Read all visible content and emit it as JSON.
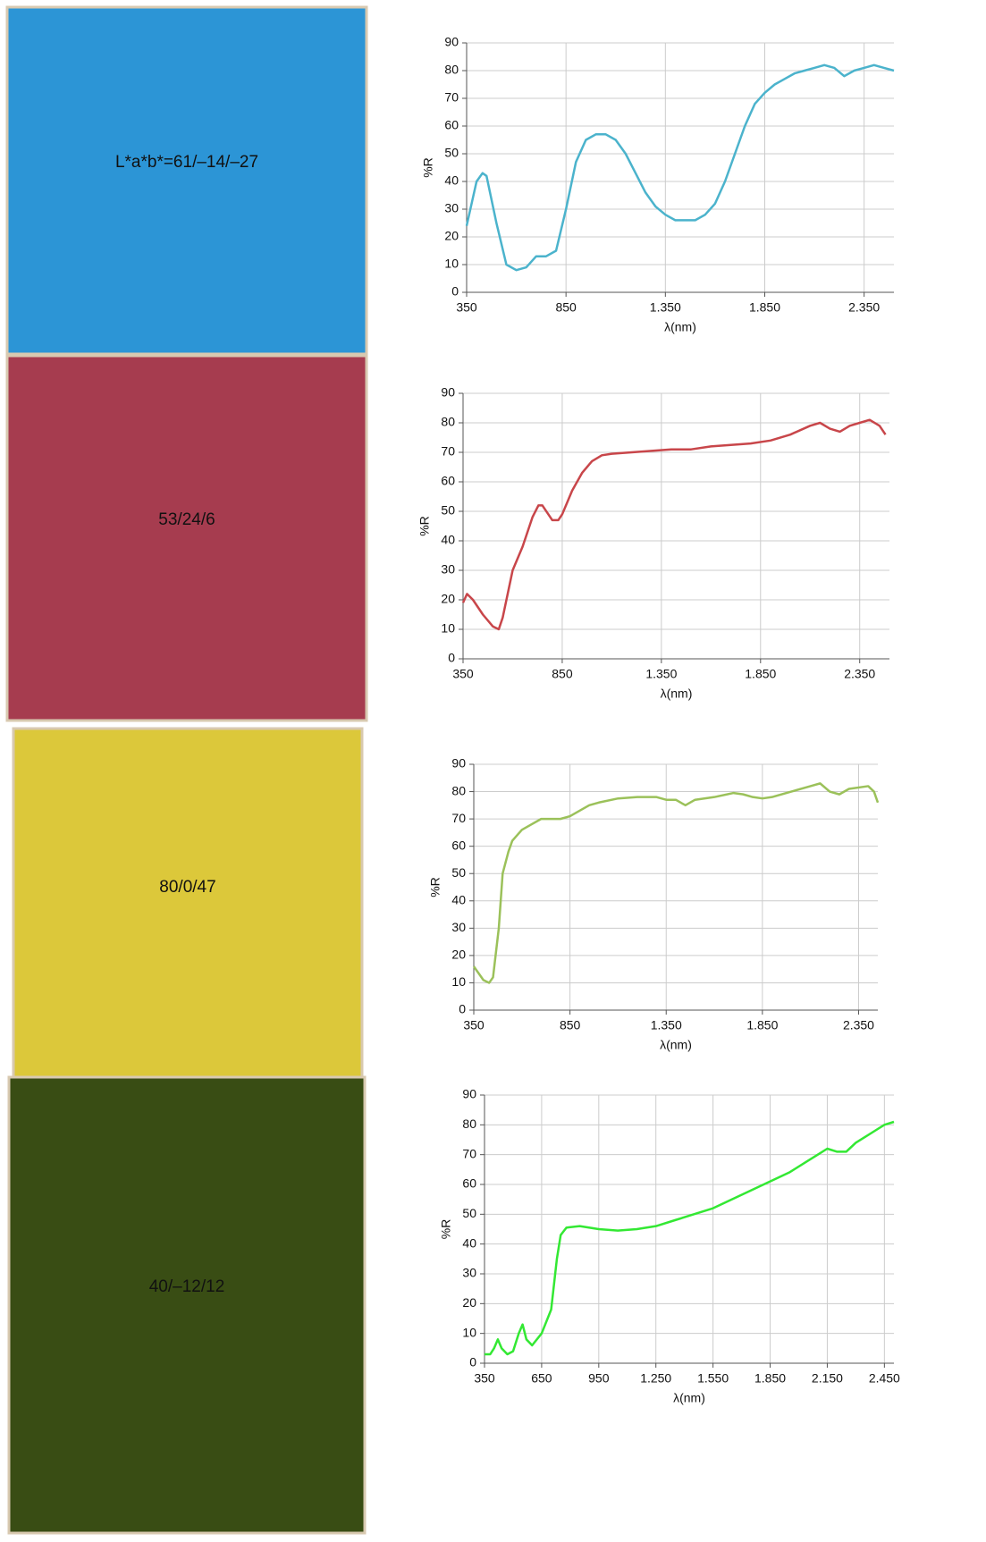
{
  "tiles": [
    {
      "label": "L*a*b*=61/–14/–27",
      "color": "#2c95d6"
    },
    {
      "label": "53/24/6",
      "color": "#a63c4f"
    },
    {
      "label": "80/0/47",
      "color": "#dcc83a"
    },
    {
      "label": "40/–12/12",
      "color": "#394d14"
    }
  ],
  "chart_data": [
    {
      "type": "line",
      "ylabel": "%R",
      "xlabel": "λ(nm)",
      "color": "#4bb3cc",
      "grid": true,
      "xlim": [
        350,
        2500
      ],
      "ylim": [
        0,
        90
      ],
      "xticks": [
        350,
        850,
        {
          "value": 1350,
          "label": "1.350"
        },
        {
          "value": 1850,
          "label": "1.850"
        },
        {
          "value": 2350,
          "label": "2.350"
        }
      ],
      "yticks": [
        0,
        10,
        20,
        30,
        40,
        50,
        60,
        70,
        80,
        90
      ],
      "x": [
        350,
        400,
        430,
        450,
        500,
        550,
        600,
        650,
        700,
        750,
        800,
        850,
        900,
        950,
        1000,
        1050,
        1100,
        1150,
        1200,
        1250,
        1300,
        1350,
        1400,
        1450,
        1500,
        1550,
        1600,
        1650,
        1700,
        1750,
        1800,
        1850,
        1900,
        1950,
        2000,
        2050,
        2100,
        2150,
        2200,
        2250,
        2300,
        2350,
        2400,
        2450,
        2500
      ],
      "values": [
        24,
        40,
        43,
        42,
        25,
        10,
        8,
        9,
        13,
        13,
        15,
        30,
        47,
        55,
        57,
        57,
        55,
        50,
        43,
        36,
        31,
        28,
        26,
        26,
        26,
        28,
        32,
        40,
        50,
        60,
        68,
        72,
        75,
        77,
        79,
        80,
        81,
        82,
        81,
        78,
        80,
        81,
        82,
        81,
        80
      ]
    },
    {
      "type": "line",
      "ylabel": "%R",
      "xlabel": "λ(nm)",
      "color": "#c8464a",
      "grid": true,
      "xlim": [
        350,
        2500
      ],
      "ylim": [
        0,
        90
      ],
      "xticks": [
        350,
        850,
        {
          "value": 1350,
          "label": "1.350"
        },
        {
          "value": 1850,
          "label": "1.850"
        },
        {
          "value": 2350,
          "label": "2.350"
        }
      ],
      "yticks": [
        0,
        10,
        20,
        30,
        40,
        50,
        60,
        70,
        80,
        90
      ],
      "x": [
        350,
        370,
        400,
        450,
        500,
        530,
        550,
        600,
        650,
        700,
        730,
        750,
        800,
        830,
        850,
        900,
        950,
        1000,
        1050,
        1100,
        1200,
        1300,
        1400,
        1500,
        1600,
        1700,
        1800,
        1900,
        2000,
        2100,
        2150,
        2200,
        2250,
        2300,
        2350,
        2400,
        2450,
        2480
      ],
      "values": [
        19,
        22,
        20,
        15,
        11,
        10,
        14,
        30,
        38,
        48,
        52,
        52,
        47,
        47,
        49,
        57,
        63,
        67,
        69,
        69.5,
        70,
        70.5,
        71,
        71,
        72,
        72.5,
        73,
        74,
        76,
        79,
        80,
        78,
        77,
        79,
        80,
        81,
        79,
        76
      ]
    },
    {
      "type": "line",
      "ylabel": "%R",
      "xlabel": "λ(nm)",
      "color": "#9bc15a",
      "grid": true,
      "xlim": [
        350,
        2450
      ],
      "ylim": [
        0,
        90
      ],
      "xticks": [
        350,
        850,
        {
          "value": 1350,
          "label": "1.350"
        },
        {
          "value": 1850,
          "label": "1.850"
        },
        {
          "value": 2350,
          "label": "2.350"
        }
      ],
      "yticks": [
        0,
        10,
        20,
        30,
        40,
        50,
        60,
        70,
        80,
        90
      ],
      "x": [
        350,
        380,
        400,
        430,
        450,
        480,
        500,
        530,
        550,
        600,
        650,
        700,
        750,
        800,
        850,
        900,
        950,
        1000,
        1100,
        1200,
        1300,
        1350,
        1400,
        1450,
        1500,
        1600,
        1700,
        1750,
        1800,
        1850,
        1900,
        2000,
        2100,
        2150,
        2200,
        2250,
        2300,
        2400,
        2430,
        2450
      ],
      "values": [
        16,
        13,
        11,
        10,
        12,
        30,
        50,
        58,
        62,
        66,
        68,
        70,
        70,
        70,
        71,
        73,
        75,
        76,
        77.5,
        78,
        78,
        77,
        77,
        75,
        77,
        78,
        79.5,
        79,
        78,
        77.5,
        78,
        80,
        82,
        83,
        80,
        79,
        81,
        82,
        80,
        76
      ]
    },
    {
      "type": "line",
      "ylabel": "%R",
      "xlabel": "λ(nm)",
      "color": "#33e833",
      "grid": true,
      "xlim": [
        350,
        2500
      ],
      "ylim": [
        0,
        90
      ],
      "xticks": [
        350,
        650,
        950,
        {
          "value": 1250,
          "label": "1.250"
        },
        {
          "value": 1550,
          "label": "1.550"
        },
        {
          "value": 1850,
          "label": "1.850"
        },
        {
          "value": 2150,
          "label": "2.150"
        },
        {
          "value": 2450,
          "label": "2.450"
        }
      ],
      "yticks": [
        0,
        10,
        20,
        30,
        40,
        50,
        60,
        70,
        80,
        90
      ],
      "x": [
        350,
        380,
        400,
        420,
        440,
        470,
        500,
        530,
        550,
        570,
        600,
        650,
        700,
        730,
        750,
        780,
        850,
        950,
        1050,
        1150,
        1250,
        1350,
        1450,
        1550,
        1650,
        1750,
        1850,
        1950,
        2050,
        2100,
        2150,
        2200,
        2250,
        2300,
        2350,
        2400,
        2450,
        2500
      ],
      "values": [
        3,
        3,
        5,
        8,
        5,
        3,
        4,
        10,
        13,
        8,
        6,
        10,
        18,
        35,
        43,
        45.5,
        46,
        45,
        44.5,
        45,
        46,
        48,
        50,
        52,
        55,
        58,
        61,
        64,
        68,
        70,
        72,
        71,
        71,
        74,
        76,
        78,
        80,
        81
      ]
    }
  ]
}
